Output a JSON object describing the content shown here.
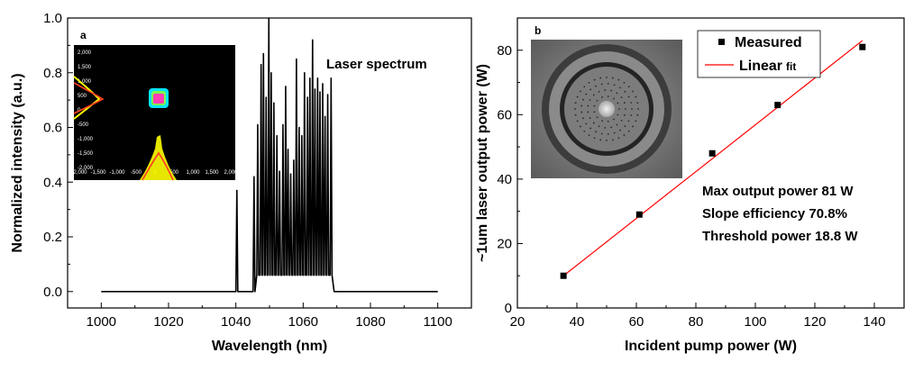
{
  "chart_data": [
    {
      "panel": "a",
      "type": "line",
      "title": "",
      "xlabel": "Wavelength (nm)",
      "ylabel": "Normalized intensity (a.u.)",
      "xlim": [
        990,
        1110
      ],
      "ylim": [
        -0.06,
        1.0
      ],
      "xticks": [
        1000,
        1020,
        1040,
        1060,
        1080,
        1100
      ],
      "yticks": [
        0.0,
        0.2,
        0.4,
        0.6,
        0.8,
        1.0
      ],
      "xtick_labels": [
        "1000",
        "1020",
        "1040",
        "1060",
        "1080",
        "1100"
      ],
      "ytick_labels": [
        "0.0",
        "0.2",
        "0.4",
        "0.6",
        "0.8",
        "1.0"
      ],
      "annotation": "Laser spectrum",
      "panel_label": "a",
      "line_color": "#000000",
      "baseline": 0.0,
      "x_range": [
        1000,
        1100
      ],
      "peaks": [
        {
          "x": 1040.3,
          "y": 0.37
        },
        {
          "x": 1045.4,
          "y": 0.42
        },
        {
          "x": 1046.5,
          "y": 0.61
        },
        {
          "x": 1047.5,
          "y": 0.83
        },
        {
          "x": 1048.2,
          "y": 0.87
        },
        {
          "x": 1049.0,
          "y": 0.71
        },
        {
          "x": 1049.8,
          "y": 1.0
        },
        {
          "x": 1050.5,
          "y": 0.8
        },
        {
          "x": 1051.3,
          "y": 0.69
        },
        {
          "x": 1052.2,
          "y": 0.57
        },
        {
          "x": 1053.0,
          "y": 0.44
        },
        {
          "x": 1054.0,
          "y": 0.61
        },
        {
          "x": 1054.8,
          "y": 0.75
        },
        {
          "x": 1055.5,
          "y": 0.52
        },
        {
          "x": 1056.3,
          "y": 0.43
        },
        {
          "x": 1057.2,
          "y": 0.48
        },
        {
          "x": 1058.0,
          "y": 0.85
        },
        {
          "x": 1058.8,
          "y": 0.6
        },
        {
          "x": 1059.6,
          "y": 0.57
        },
        {
          "x": 1060.4,
          "y": 0.8
        },
        {
          "x": 1061.3,
          "y": 0.71
        },
        {
          "x": 1062.0,
          "y": 0.78
        },
        {
          "x": 1062.8,
          "y": 0.92
        },
        {
          "x": 1063.5,
          "y": 0.74
        },
        {
          "x": 1064.3,
          "y": 0.78
        },
        {
          "x": 1065.0,
          "y": 0.73
        },
        {
          "x": 1065.8,
          "y": 0.76
        },
        {
          "x": 1066.5,
          "y": 0.64
        },
        {
          "x": 1067.3,
          "y": 0.72
        },
        {
          "x": 1068.3,
          "y": 0.78
        }
      ],
      "inset": {
        "panel_label": "a",
        "tick_labels_top_axis": [
          "-2,000",
          "-1,500",
          "-1,000",
          "-500",
          "0",
          "500",
          "1,000",
          "1,500",
          "2,000"
        ],
        "tick_labels_left_axis": [
          "2,000",
          "1,500",
          "1,000",
          "500",
          "0",
          "-500",
          "-1,000",
          "-1,500",
          "-2,000"
        ]
      }
    },
    {
      "panel": "b",
      "type": "scatter",
      "title": "",
      "xlabel": "Incident pump power (W)",
      "ylabel": "~1um laser output power (W)",
      "xlim": [
        20,
        150
      ],
      "ylim": [
        0,
        90
      ],
      "xticks": [
        20,
        40,
        60,
        80,
        100,
        120,
        140
      ],
      "yticks": [
        0,
        20,
        40,
        60,
        80
      ],
      "xtick_labels": [
        "20",
        "40",
        "60",
        "80",
        "100",
        "120",
        "140"
      ],
      "ytick_labels": [
        "0",
        "20",
        "40",
        "60",
        "80"
      ],
      "panel_label": "b",
      "series": [
        {
          "name": "Measured",
          "marker": "square",
          "color": "#000000",
          "points": [
            {
              "x": 35.5,
              "y": 10
            },
            {
              "x": 61,
              "y": 29
            },
            {
              "x": 85.5,
              "y": 48
            },
            {
              "x": 107.5,
              "y": 63
            },
            {
              "x": 136,
              "y": 81
            }
          ]
        },
        {
          "name": "Linear fit",
          "type": "line",
          "color": "#ff0000",
          "points": [
            {
              "x": 35.5,
              "y": 10
            },
            {
              "x": 136,
              "y": 83
            }
          ]
        }
      ],
      "legend": {
        "placement": "top-right",
        "entries": [
          {
            "text": "Measured"
          },
          {
            "main": "Linear",
            "suffix": "fit"
          }
        ]
      },
      "annotations": [
        "Max output power 81 W",
        "Slope efficiency 70.8%",
        "Threshold power 18.8 W"
      ]
    }
  ]
}
